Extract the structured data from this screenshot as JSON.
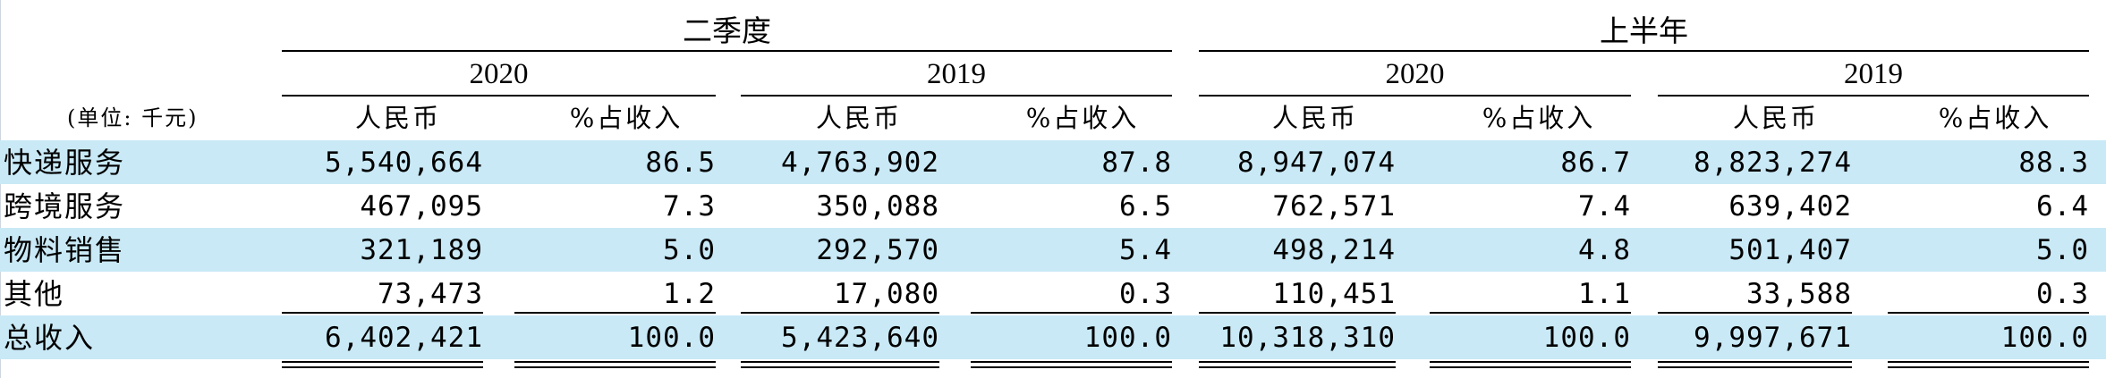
{
  "table": {
    "unit_label": "(单位: 千元)",
    "groups": [
      {
        "label": "二季度",
        "years": [
          "2020",
          "2019"
        ]
      },
      {
        "label": "上半年",
        "years": [
          "2020",
          "2019"
        ]
      }
    ],
    "col_headers": [
      "人民币",
      "%占收入"
    ],
    "rows": [
      {
        "label": "快递服务",
        "values": [
          "5,540,664",
          "86.5",
          "4,763,902",
          "87.8",
          "8,947,074",
          "86.7",
          "8,823,274",
          "88.3"
        ]
      },
      {
        "label": "跨境服务",
        "values": [
          "467,095",
          "7.3",
          "350,088",
          "6.5",
          "762,571",
          "7.4",
          "639,402",
          "6.4"
        ]
      },
      {
        "label": "物料销售",
        "values": [
          "321,189",
          "5.0",
          "292,570",
          "5.4",
          "498,214",
          "4.8",
          "501,407",
          "5.0"
        ]
      },
      {
        "label": "其他",
        "values": [
          "73,473",
          "1.2",
          "17,080",
          "0.3",
          "110,451",
          "1.1",
          "33,588",
          "0.3"
        ]
      },
      {
        "label": "总收入",
        "values": [
          "6,402,421",
          "100.0",
          "5,423,640",
          "100.0",
          "10,318,310",
          "100.0",
          "9,997,671",
          "100.0"
        ]
      }
    ],
    "highlight_color": "#c9e9f6"
  }
}
